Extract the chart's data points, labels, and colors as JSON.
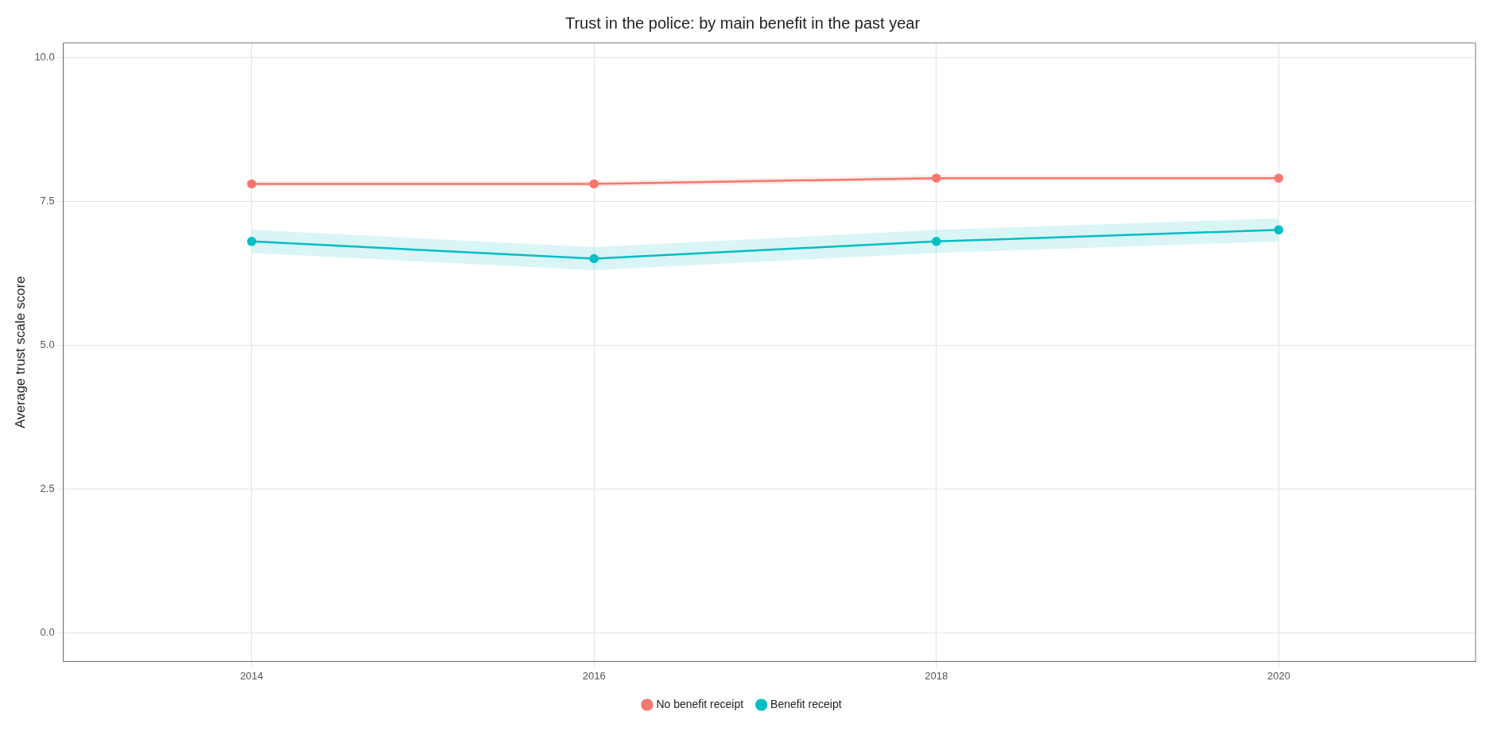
{
  "chart_data": {
    "type": "line",
    "title": "Trust in the police: by main benefit in the past year",
    "ylabel": "Average trust scale score",
    "x": [
      2014,
      2016,
      2018,
      2020
    ],
    "xlim": [
      2012.9,
      2021.15
    ],
    "xticks": [
      2014,
      2016,
      2018,
      2020
    ],
    "ylim": [
      -0.5,
      10.25
    ],
    "yticks": [
      {
        "value": 0,
        "label": "0.0"
      },
      {
        "value": 2.5,
        "label": "2.5"
      },
      {
        "value": 5,
        "label": "5.0"
      },
      {
        "value": 7.5,
        "label": "7.5"
      },
      {
        "value": 10,
        "label": "10.0"
      }
    ],
    "grid": true,
    "legend": "bottom",
    "marker": "circle",
    "line_style": "solid",
    "series": [
      {
        "name": "No benefit receipt",
        "color": "#f8766d",
        "values": [
          7.8,
          7.8,
          7.9,
          7.9
        ],
        "lower": [
          7.75,
          7.75,
          7.85,
          7.85
        ],
        "upper": [
          7.85,
          7.85,
          7.95,
          7.95
        ]
      },
      {
        "name": "Benefit receipt",
        "color": "#00bfc4",
        "values": [
          6.8,
          6.5,
          6.8,
          7.0
        ],
        "lower": [
          6.6,
          6.3,
          6.6,
          6.8
        ],
        "upper": [
          7.0,
          6.7,
          7.0,
          7.2
        ]
      }
    ]
  }
}
